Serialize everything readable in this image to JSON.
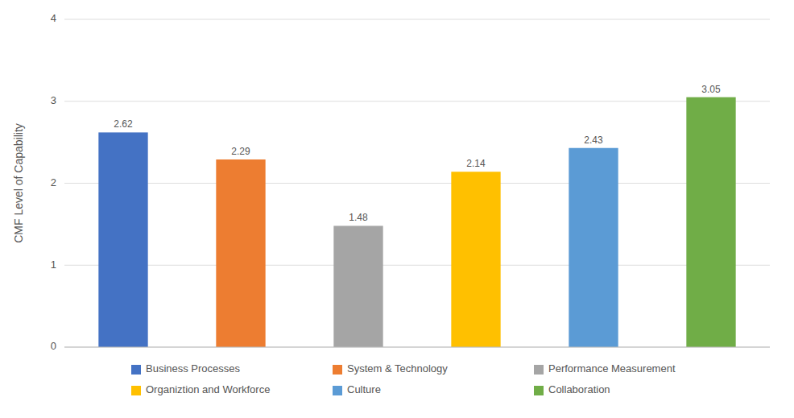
{
  "chart_data": {
    "type": "bar",
    "categories": [
      "Business Processes",
      "System & Technology",
      "Performance Measurement",
      "Organiztion and Workforce",
      "Culture",
      "Collaboration"
    ],
    "values": [
      2.62,
      2.29,
      1.48,
      2.14,
      2.43,
      3.05
    ],
    "colors": [
      "#4472C4",
      "#ED7D31",
      "#A5A5A5",
      "#FFC000",
      "#5B9BD5",
      "#70AD47"
    ],
    "ylabel": "CMF Level of Capability",
    "ylim": [
      0,
      4
    ],
    "yticks": [
      0,
      1,
      2,
      3,
      4
    ],
    "grid": true,
    "data_labels": true,
    "tick_labels": "y",
    "legend": "bottom"
  }
}
